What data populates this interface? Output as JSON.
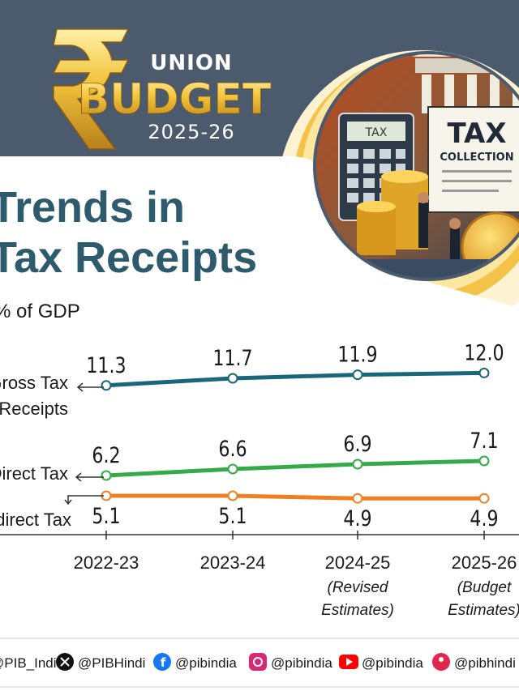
{
  "logo": {
    "line1": "UNION",
    "line2": "BUDGET",
    "line3": "2025-26"
  },
  "headline": {
    "line1": "Trends in",
    "line2": "Tax Receipts"
  },
  "illustration": {
    "sign_small": "TAX",
    "sign_big_line1": "TAX",
    "sign_big_line2": "COLLECTION"
  },
  "chart_data": {
    "type": "line",
    "ylabel": "% of GDP",
    "categories": [
      "2022-23",
      "2023-24",
      "2024-25",
      "2025-26"
    ],
    "category_notes": [
      "",
      "",
      "(Revised Estimates)",
      "(Budget Estimates)"
    ],
    "category_notes_lines": [
      [],
      [],
      [
        "(Revised",
        "Estimates)"
      ],
      [
        "(Budget",
        "Estimates)"
      ]
    ],
    "series": [
      {
        "name": "Gross Tax Receipts",
        "label_lines": [
          "Gross Tax",
          "Receipts"
        ],
        "values": [
          11.3,
          11.7,
          11.9,
          12.0
        ],
        "color": "#19677a"
      },
      {
        "name": "Direct Tax",
        "label_lines": [
          "Direct Tax"
        ],
        "values": [
          6.2,
          6.6,
          6.9,
          7.1
        ],
        "color": "#35ab48"
      },
      {
        "name": "Indirect Tax",
        "label_lines": [
          "Indirect Tax"
        ],
        "values": [
          5.1,
          5.1,
          4.9,
          4.9
        ],
        "color": "#f07f22"
      }
    ],
    "grid": false
  },
  "footer": {
    "handles": [
      {
        "icon": "bird-icon",
        "text": "@PIB_India"
      },
      {
        "icon": "x-icon",
        "text": "@PIBHindi"
      },
      {
        "icon": "facebook-icon",
        "text": "@pibindia"
      },
      {
        "icon": "instagram-icon",
        "text": "@pibindia"
      },
      {
        "icon": "youtube-icon",
        "text": "@pibindia"
      },
      {
        "icon": "kooapp-icon",
        "text": "@pibhindi"
      }
    ]
  },
  "colors": {
    "header": "#4b5a6c",
    "headline": "#2d5a6d",
    "gold": "#f2ba2e",
    "cream": "#fdf3d3",
    "ink": "#1a1a1a"
  }
}
